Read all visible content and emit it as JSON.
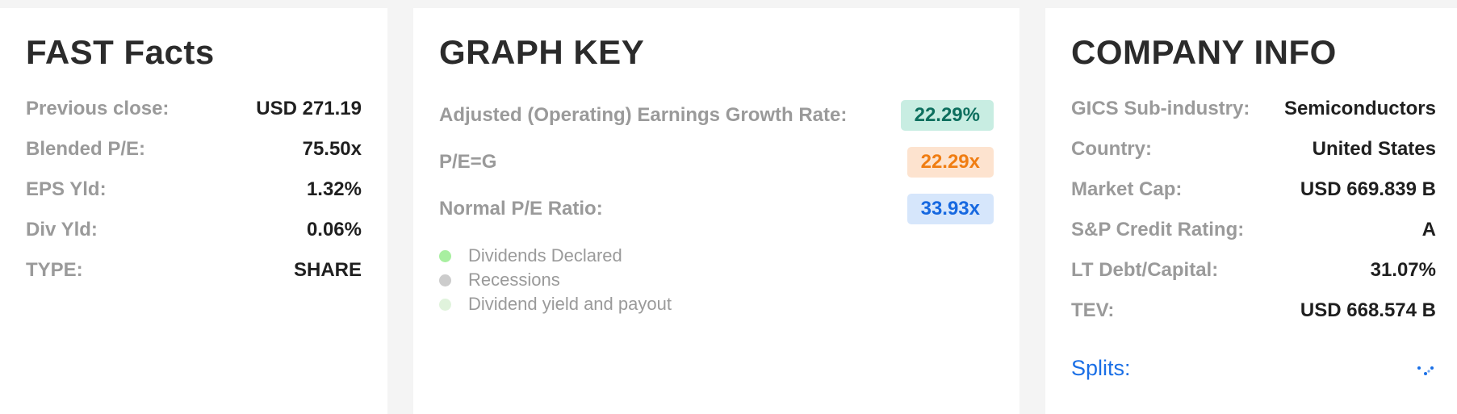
{
  "fast_facts": {
    "title": "FAST Facts",
    "rows": [
      {
        "label": "Previous close:",
        "value": "USD 271.19"
      },
      {
        "label": "Blended P/E:",
        "value": "75.50x"
      },
      {
        "label": "EPS Yld:",
        "value": "1.32%"
      },
      {
        "label": "Div Yld:",
        "value": "0.06%"
      },
      {
        "label": "TYPE:",
        "value": "SHARE"
      }
    ]
  },
  "graph_key": {
    "title": "GRAPH KEY",
    "rows": [
      {
        "label": "Adjusted (Operating) Earnings Growth Rate:",
        "value": "22.29%",
        "color": "#0d6f5e",
        "bg": "#c8ede2"
      },
      {
        "label": "P/E=G",
        "value": "22.29x",
        "color": "#f07d12",
        "bg": "#fde3cf"
      },
      {
        "label": "Normal P/E Ratio:",
        "value": "33.93x",
        "color": "#1668e0",
        "bg": "#d6e6fb"
      }
    ],
    "legend": [
      {
        "label": "Dividends Declared",
        "color": "#a8efa0"
      },
      {
        "label": "Recessions",
        "color": "#cccccc"
      },
      {
        "label": "Dividend yield and payout",
        "color": "#e0f3dc"
      }
    ]
  },
  "company_info": {
    "title": "COMPANY INFO",
    "rows": [
      {
        "label": "GICS Sub-industry:",
        "value": "Semiconductors"
      },
      {
        "label": "Country:",
        "value": "United States"
      },
      {
        "label": "Market Cap:",
        "value": "USD 669.839 B"
      },
      {
        "label": "S&P Credit Rating:",
        "value": "A"
      },
      {
        "label": "LT Debt/Capital:",
        "value": "31.07%"
      },
      {
        "label": "TEV:",
        "value": "USD 668.574 B"
      }
    ],
    "splits_label": "Splits:",
    "splits_icon": "loading-spinner-icon",
    "accent_color": "#1a6fe6"
  }
}
